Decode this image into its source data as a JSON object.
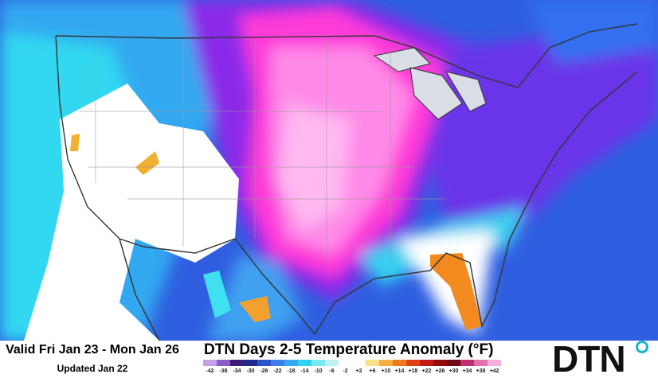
{
  "footer": {
    "valid": "Valid Fri Jan 23 - Mon Jan 26",
    "updated": "Updated Jan 22",
    "title": "DTN Days 2-5 Temperature Anomaly (°F)",
    "logo": "DTN",
    "legend": [
      {
        "label": "-42",
        "color": "#c8a0e8"
      },
      {
        "label": "-38",
        "color": "#8a5cc8"
      },
      {
        "label": "-34",
        "color": "#3a1e78"
      },
      {
        "label": "-30",
        "color": "#1e2a8c"
      },
      {
        "label": "-26",
        "color": "#2c52c8"
      },
      {
        "label": "-22",
        "color": "#3f7ee8"
      },
      {
        "label": "-18",
        "color": "#3aa8f0"
      },
      {
        "label": "-14",
        "color": "#30d2f0"
      },
      {
        "label": "-10",
        "color": "#7ae8f0"
      },
      {
        "label": "-6",
        "color": "#c0f0f4"
      },
      {
        "label": "-2",
        "color": "#ffffff"
      },
      {
        "label": "+2",
        "color": "#ffffff"
      },
      {
        "label": "+6",
        "color": "#fbe08a"
      },
      {
        "label": "+10",
        "color": "#f6b040"
      },
      {
        "label": "+14",
        "color": "#ee7a20"
      },
      {
        "label": "+18",
        "color": "#e04018"
      },
      {
        "label": "+22",
        "color": "#c41810"
      },
      {
        "label": "+26",
        "color": "#900c0c"
      },
      {
        "label": "+30",
        "color": "#6c0a14"
      },
      {
        "label": "+34",
        "color": "#c03070"
      },
      {
        "label": "+38",
        "color": "#e070b0"
      },
      {
        "label": "+42",
        "color": "#f4b0d8"
      }
    ]
  }
}
